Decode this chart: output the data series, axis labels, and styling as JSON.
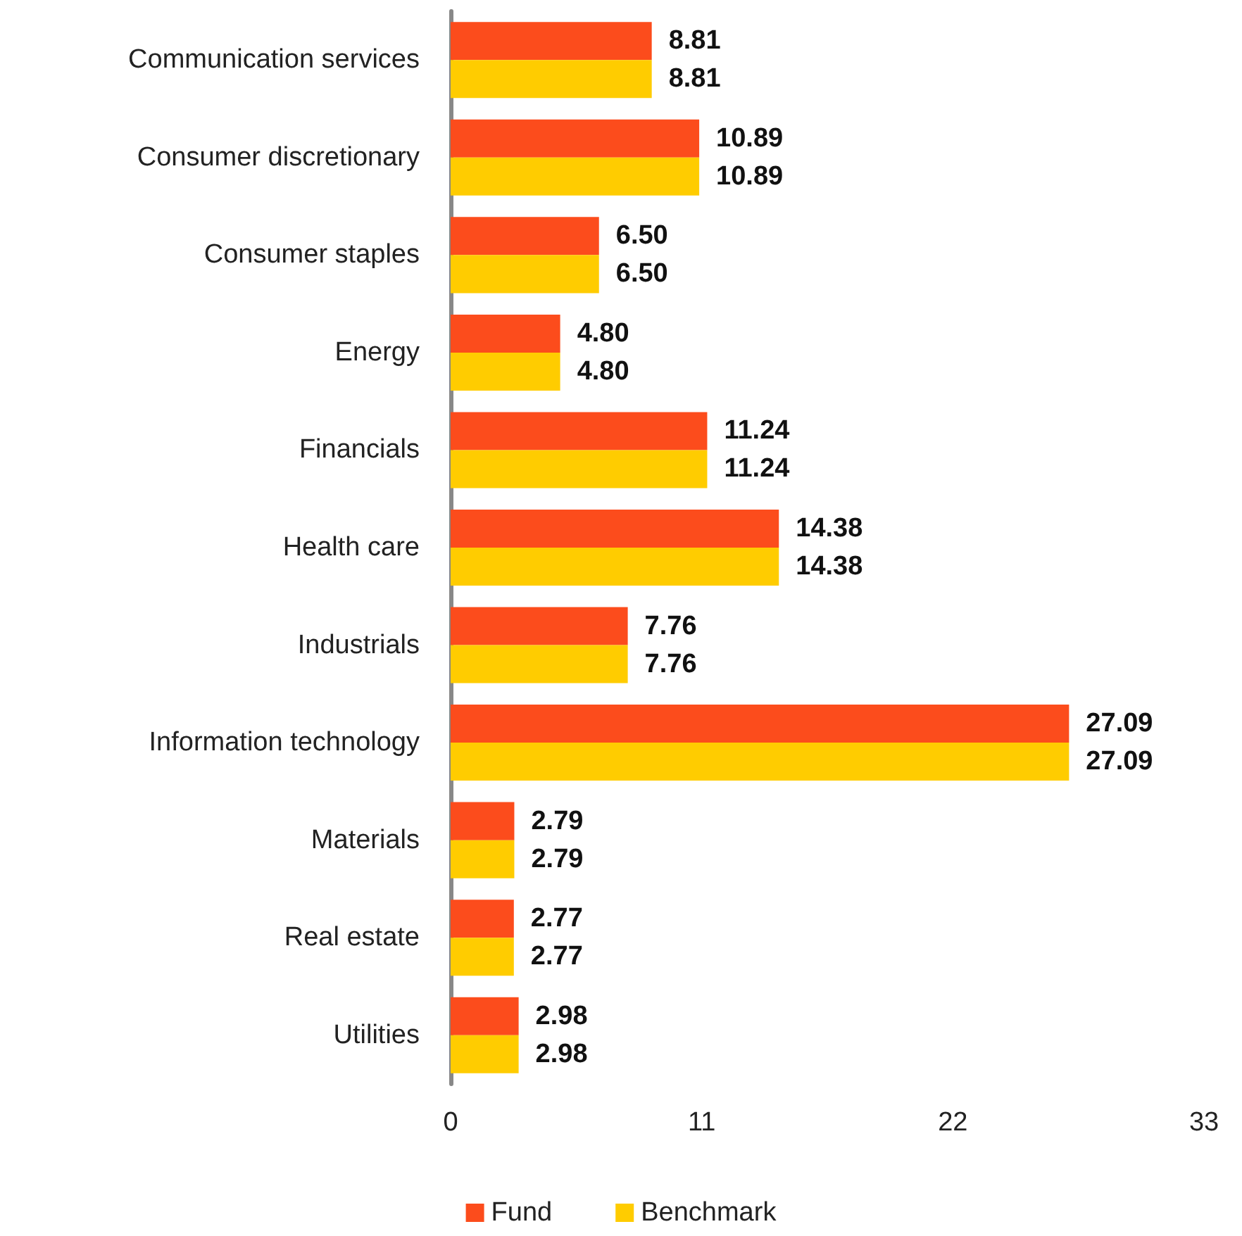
{
  "chart_data": {
    "type": "bar",
    "orientation": "horizontal",
    "categories": [
      "Communication services",
      "Consumer discretionary",
      "Consumer staples",
      "Energy",
      "Financials",
      "Health care",
      "Industrials",
      "Information technology",
      "Materials",
      "Real estate",
      "Utilities"
    ],
    "series": [
      {
        "name": "Fund",
        "color": "#fc4c1c",
        "values": [
          8.81,
          10.89,
          6.5,
          4.8,
          11.24,
          14.38,
          7.76,
          27.09,
          2.79,
          2.77,
          2.98
        ],
        "value_labels": [
          "8.81",
          "10.89",
          "6.50",
          "4.80",
          "11.24",
          "14.38",
          "7.76",
          "27.09",
          "2.79",
          "2.77",
          "2.98"
        ]
      },
      {
        "name": "Benchmark",
        "color": "#ffcc00",
        "values": [
          8.81,
          10.89,
          6.5,
          4.8,
          11.24,
          14.38,
          7.76,
          27.09,
          2.79,
          2.77,
          2.98
        ],
        "value_labels": [
          "8.81",
          "10.89",
          "6.50",
          "4.80",
          "11.24",
          "14.38",
          "7.76",
          "27.09",
          "2.79",
          "2.77",
          "2.98"
        ]
      }
    ],
    "xlim": [
      0,
      33
    ],
    "xticks": [
      0,
      11,
      22,
      33
    ],
    "grid": false,
    "legend": "bottom"
  }
}
